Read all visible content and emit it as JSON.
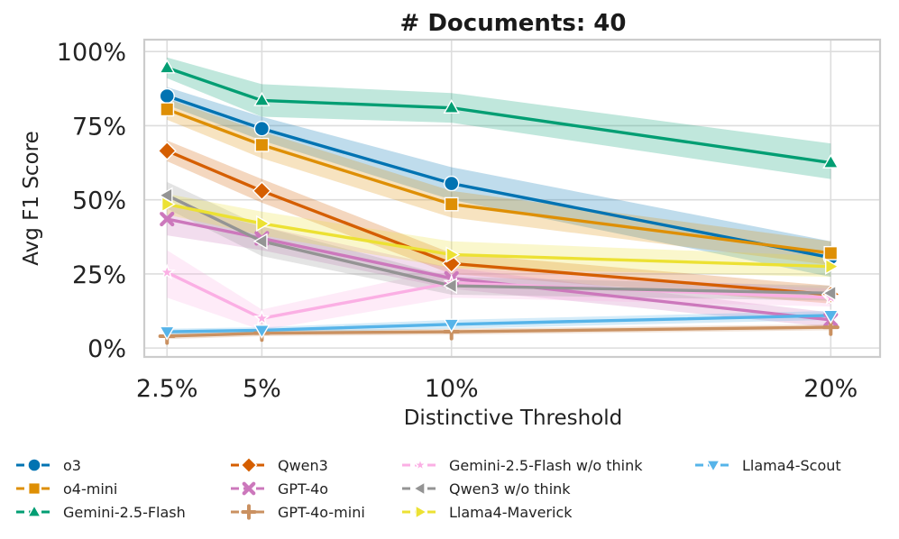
{
  "chart_data": {
    "type": "line",
    "title": "# Documents: 40",
    "xlabel": "Distinctive Threshold",
    "ylabel": "Avg F1 Score",
    "x": [
      2.5,
      5,
      10,
      20
    ],
    "x_tick_labels": [
      "2.5%",
      "5%",
      "10%",
      "20%"
    ],
    "y_ticks": [
      0,
      25,
      50,
      75,
      100
    ],
    "y_tick_labels": [
      "0%",
      "25%",
      "50%",
      "75%",
      "100%"
    ],
    "ylim": [
      -3,
      104
    ],
    "grid": true,
    "legend_position": "bottom",
    "series": [
      {
        "name": "o3",
        "color": "#0173b2",
        "marker": "circle",
        "values": [
          85,
          74,
          55.5,
          30.5
        ],
        "lower": [
          82,
          70,
          50,
          24
        ],
        "upper": [
          88,
          78,
          61,
          36
        ]
      },
      {
        "name": "o4-mini",
        "color": "#de8f05",
        "marker": "square",
        "values": [
          80.5,
          68.5,
          48.5,
          32
        ],
        "lower": [
          77,
          64,
          44,
          28
        ],
        "upper": [
          84,
          73,
          53,
          36
        ]
      },
      {
        "name": "Gemini-2.5-Flash",
        "color": "#029e73",
        "marker": "triangle-up",
        "values": [
          94.5,
          83.5,
          81,
          62.5
        ],
        "lower": [
          91,
          78,
          76,
          57
        ],
        "upper": [
          98,
          89,
          86,
          69
        ]
      },
      {
        "name": "Qwen3",
        "color": "#d55e00",
        "marker": "diamond",
        "values": [
          66.5,
          53,
          28.5,
          18
        ],
        "lower": [
          63,
          49,
          25,
          15
        ],
        "upper": [
          70,
          57,
          32,
          21
        ]
      },
      {
        "name": "GPT-4o",
        "color": "#cc78bc",
        "marker": "x",
        "values": [
          43.5,
          37,
          23.5,
          9.5
        ],
        "lower": [
          38,
          33,
          20,
          7
        ],
        "upper": [
          49,
          41,
          27,
          12
        ]
      },
      {
        "name": "GPT-4o-mini",
        "color": "#ca9161",
        "marker": "plus",
        "values": [
          4,
          5,
          5.5,
          7
        ],
        "lower": [
          3,
          4,
          4.5,
          6
        ],
        "upper": [
          5,
          6,
          6.5,
          8
        ]
      },
      {
        "name": "Gemini-2.5-Flash w/o think",
        "color": "#fbafe4",
        "marker": "star",
        "values": [
          25.5,
          10,
          22,
          17
        ],
        "lower": [
          17,
          6,
          17,
          14
        ],
        "upper": [
          33,
          13,
          27,
          20
        ]
      },
      {
        "name": "Qwen3 w/o think",
        "color": "#949494",
        "marker": "triangle-left",
        "values": [
          51.5,
          36,
          21,
          18.5
        ],
        "lower": [
          47,
          31,
          18,
          16
        ],
        "upper": [
          56,
          41,
          24,
          21
        ]
      },
      {
        "name": "Llama4-Maverick",
        "color": "#ece133",
        "marker": "triangle-right",
        "values": [
          48.5,
          42,
          31.5,
          27.5
        ],
        "lower": [
          45,
          38,
          27,
          24
        ],
        "upper": [
          52,
          46,
          36,
          31
        ]
      },
      {
        "name": "Llama4-Scout",
        "color": "#56b4e9",
        "marker": "triangle-down",
        "values": [
          5.5,
          6,
          8,
          11
        ],
        "lower": [
          4.5,
          5,
          6.5,
          9.5
        ],
        "upper": [
          6.5,
          7,
          9.5,
          12.5
        ]
      }
    ]
  }
}
